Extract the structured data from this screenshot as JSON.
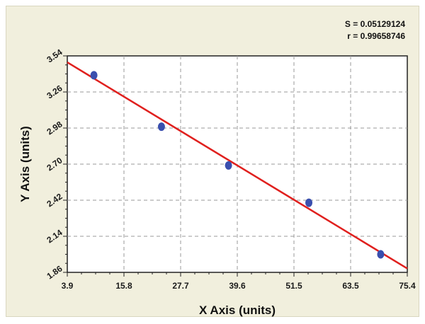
{
  "chart_data": {
    "type": "scatter",
    "xlabel": "X Axis (units)",
    "ylabel": "Y Axis (units)",
    "xlim": [
      3.9,
      75.4
    ],
    "ylim": [
      1.86,
      3.54
    ],
    "x_ticks": [
      "3.9",
      "15.8",
      "27.7",
      "39.6",
      "51.5",
      "63.5",
      "75.4"
    ],
    "y_ticks": [
      "1.86",
      "2.14",
      "2.42",
      "2.70",
      "2.98",
      "3.26",
      "3.54"
    ],
    "grid": true,
    "series": [
      {
        "points": [
          {
            "x": 9.5,
            "y": 3.39
          },
          {
            "x": 23.7,
            "y": 2.99
          },
          {
            "x": 37.8,
            "y": 2.69
          },
          {
            "x": 54.7,
            "y": 2.4
          },
          {
            "x": 69.8,
            "y": 2.0
          }
        ],
        "color": "#3a4fae"
      }
    ],
    "fit_line": {
      "type": "linear",
      "x": [
        3.9,
        75.4
      ],
      "y": [
        3.49,
        1.89
      ],
      "color": "#e0201e"
    },
    "annotations": [
      "S = 0.05129124",
      "r = 0.99658746"
    ]
  }
}
